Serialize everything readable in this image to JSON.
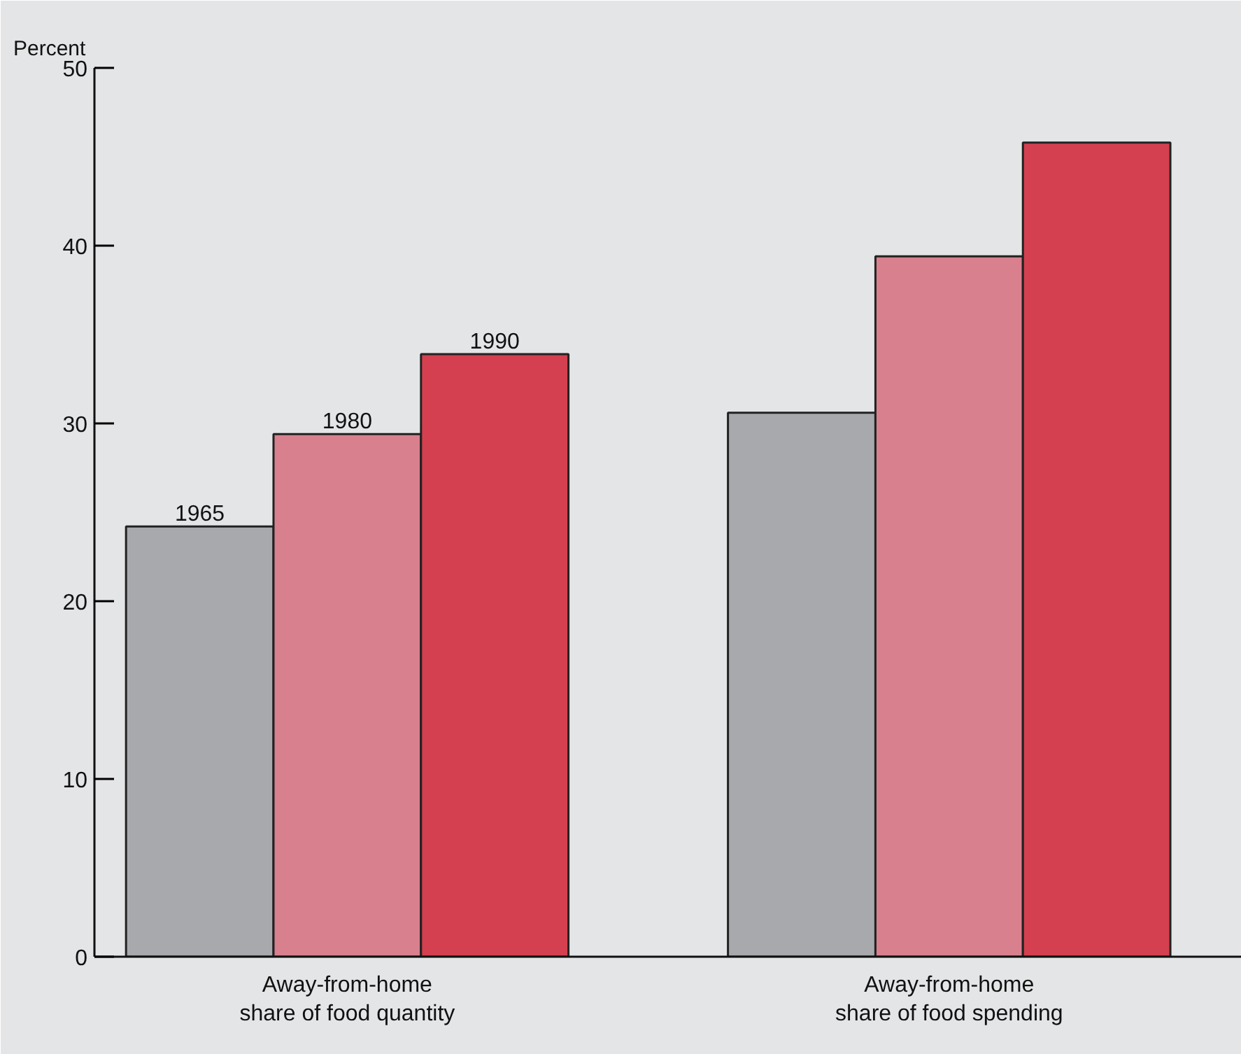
{
  "chart_data": {
    "type": "bar",
    "ylabel": "Percent",
    "categories": [
      "Away-from-home\nshare of food quantity",
      "Away-from-home\nshare of food spending"
    ],
    "series": [
      {
        "name": "1965",
        "color": "#a8a9ad",
        "values": [
          24.2,
          30.6
        ]
      },
      {
        "name": "1980",
        "color": "#d9808f",
        "values": [
          29.4,
          39.4
        ]
      },
      {
        "name": "1990",
        "color": "#d4404f",
        "values": [
          33.9,
          45.8
        ]
      }
    ],
    "ylim": [
      0,
      50
    ],
    "yticks": [
      0,
      10,
      20,
      30,
      40,
      50
    ]
  }
}
